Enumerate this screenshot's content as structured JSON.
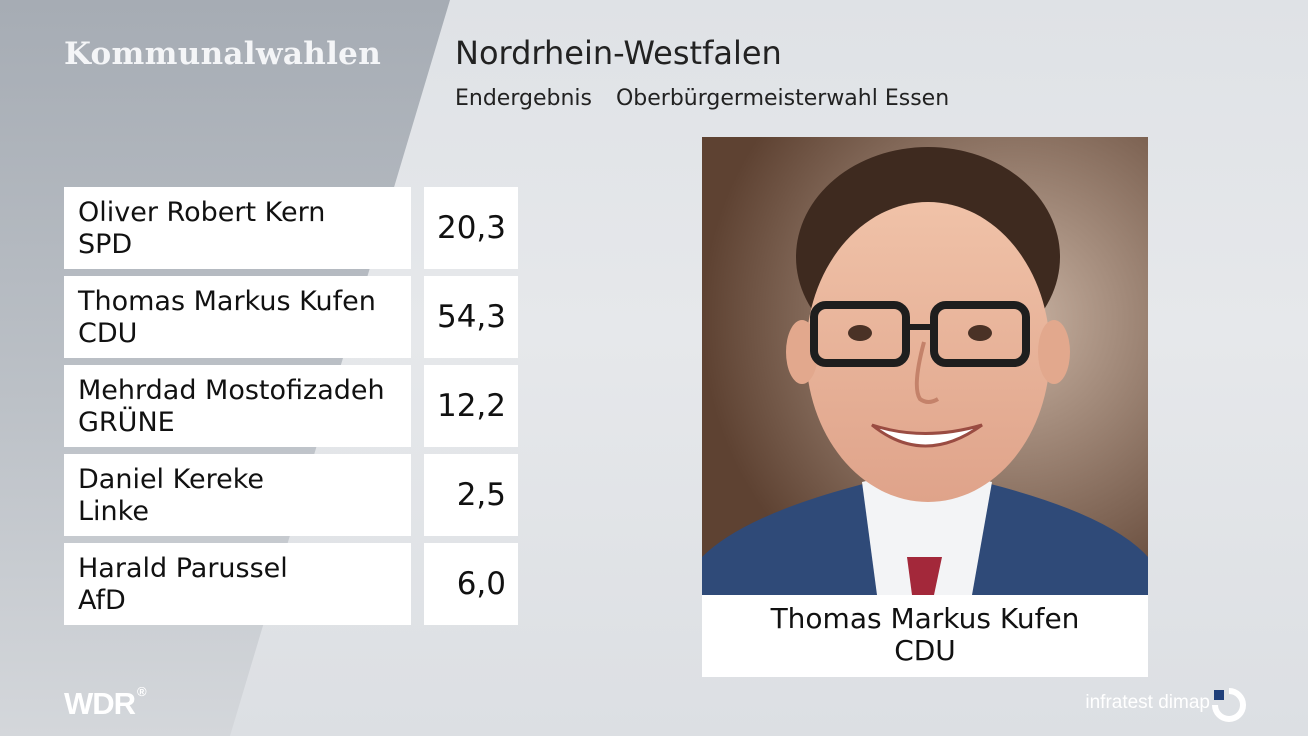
{
  "header": {
    "brand": "Kommunalwahlen",
    "region": "Nordrhein-Westfalen",
    "result_type": "Endergebnis",
    "election": "Oberbürgermeisterwahl Essen"
  },
  "results": [
    {
      "name": "Oliver Robert Kern",
      "party": "SPD",
      "value": "20,3"
    },
    {
      "name": "Thomas Markus Kufen",
      "party": "CDU",
      "value": "54,3"
    },
    {
      "name": "Mehrdad Mostofizadeh",
      "party": "GRÜNE",
      "value": "12,2"
    },
    {
      "name": "Daniel Kereke",
      "party": "Linke",
      "value": "2,5"
    },
    {
      "name": "Harald Parussel",
      "party": "AfD",
      "value": "6,0"
    }
  ],
  "winner": {
    "name": "Thomas Markus Kufen",
    "party": "CDU"
  },
  "footer": {
    "broadcaster": "WDR",
    "broadcaster_mark": "®",
    "pollster": "infratest dimap"
  },
  "colors": {
    "panel": "#b0b5bc",
    "background": "#e2e4e7",
    "box": "#ffffff",
    "text": "#111111"
  }
}
